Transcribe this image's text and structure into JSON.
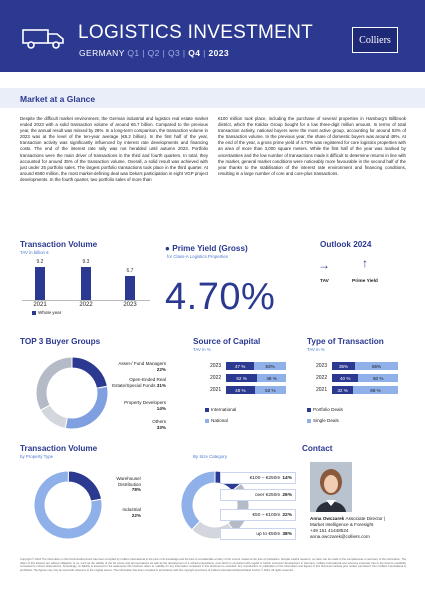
{
  "header": {
    "title": "LOGISTICS INVESTMENT",
    "country": "GERMANY",
    "quarters": [
      "Q1",
      "Q2",
      "Q3",
      "Q4"
    ],
    "current_quarter": "Q4",
    "year": "2023",
    "logo_text": "Colliers",
    "background_color": "#2b3990"
  },
  "market_at_a_glance": {
    "title": "Market at a Glance",
    "col1": "Despite the difficult market environment, the German industrial and logistics real estate market ended 2023 with a solid transaction volume of around €6.7 billion. Compared to the previous year, the annual result was missed by 28%. In a long-term comparison, the transaction volume in 2023 was at the level of the ten-year average (€6.2 billion). In the first half of the year, transaction activity was significantly influenced by interest rate developments and financing costs. The end of the interest rate rally was not heralded until autumn 2023. Portfolio transactions were the main driver of transactions in the third and fourth quarters. In total, they accounted for around 35% of the transaction volume. Overall, a solid result was achieved with just under 25 portfolio sales. The largest portfolio transactions took place in the third quarter. At around €560 million, the most market-defining deal was Deka's participation in eight VGP project developments. In the fourth quarter, two portfolio sales of more than",
    "col2": "€100 million took place, including the purchase of several properties in Hamburg's Billbrook district, which the Kaldox Group bought for a low three-digit million amount. In terms of total transaction activity, national buyers were the most active group, accounting for around 53% of the transaction volume. In the previous year, the share of domestic buyers was around 48%. At the end of the year, a gross prime yield of 4.70% was registered for core logistics properties with an area of more than 3,000 square meters. While the first half of the year was marked by uncertainties and the low number of transactions made it difficult to determine returns in line with the market, general market conditions were noticeably more favourable in the second half of the year thanks to the stabilisation of the interest rate environment and financing conditions, resulting in a large number of core and core-plus transactions."
  },
  "transaction_volume": {
    "title": "Transaction Volume",
    "subtitle": "TAV in billion €",
    "legend": "Whole year",
    "chart_data": {
      "type": "bar",
      "categories": [
        "2021",
        "2022",
        "2023"
      ],
      "values": [
        9.2,
        9.3,
        6.7
      ],
      "value_labels": [
        "9.2",
        "9.3",
        "6.7"
      ],
      "ylim": [
        0,
        10
      ]
    }
  },
  "prime_yield": {
    "title": "Prime Yield (Gross)",
    "subtitle": "for Class-A Logistics Properties",
    "value": "4.70%"
  },
  "outlook": {
    "title": "Outlook 2024",
    "items": [
      {
        "label": "TAV",
        "icon": "arrow-right-icon",
        "glyph": "→"
      },
      {
        "label": "Prime Yield",
        "icon": "arrow-up-icon",
        "glyph": "↑"
      }
    ]
  },
  "top3_buyers": {
    "title": "TOP 3 Buyer Groups",
    "chart_data": {
      "type": "pie",
      "slices": [
        {
          "label": "Asset-/ Fund Managers",
          "value": 22,
          "value_label": "22%",
          "color": "#2b3990"
        },
        {
          "label": "Open-Ended Real Estate/Special Funds",
          "value": 31,
          "value_label": "31%",
          "color": "#7f9fe0"
        },
        {
          "label": "Property Developers",
          "value": 14,
          "value_label": "14%",
          "color": "#d3d6dc"
        },
        {
          "label": "Others",
          "value": 33,
          "value_label": "33%",
          "color": "#b4bbc7"
        }
      ]
    }
  },
  "source_of_capital": {
    "title": "Source of Capital",
    "subtitle": "TAV in %",
    "legend": [
      "International",
      "National"
    ],
    "chart_data": {
      "type": "bar",
      "categories": [
        "2023",
        "2022",
        "2021"
      ],
      "series": [
        {
          "name": "International",
          "values": [
            47,
            52,
            48
          ],
          "labels": [
            "47 %",
            "52 %",
            "48 %"
          ]
        },
        {
          "name": "National",
          "values": [
            53,
            48,
            52
          ],
          "labels": [
            "53%",
            "48 %",
            "52 %"
          ]
        }
      ]
    }
  },
  "type_of_transaction": {
    "title": "Type of Transaction",
    "subtitle": "TAV in %",
    "legend": [
      "Portfolio Deals",
      "Single Deals"
    ],
    "chart_data": {
      "type": "bar",
      "categories": [
        "2023",
        "2022",
        "2021"
      ],
      "series": [
        {
          "name": "Portfolio Deals",
          "values": [
            35,
            40,
            32
          ],
          "labels": [
            "35%",
            "40 %",
            "32 %"
          ]
        },
        {
          "name": "Single Deals",
          "values": [
            65,
            60,
            68
          ],
          "labels": [
            "65%",
            "60 %",
            "68 %"
          ]
        }
      ]
    }
  },
  "tv_by_property": {
    "title": "Transaction Volume",
    "subtitle": "by Property Type",
    "chart_data": {
      "type": "pie",
      "slices": [
        {
          "label": "Warehouse/ Distribution",
          "value": 78,
          "value_label": "78%",
          "color": "#8fb0e8"
        },
        {
          "label": "Industrial",
          "value": 22,
          "value_label": "22%",
          "color": "#2b3990"
        }
      ]
    }
  },
  "tv_by_size": {
    "subtitle": "By Size Category",
    "chart_data": {
      "type": "pie",
      "slices": [
        {
          "label": "€100 – €250m",
          "value": 14,
          "value_label": "14%",
          "color": "#2b3990"
        },
        {
          "label": "over €250m",
          "value": 26,
          "value_label": "26%",
          "color": "#b4bbc7"
        },
        {
          "label": "€50 – €100m",
          "value": 22,
          "value_label": "22%",
          "color": "#d3d6dc"
        },
        {
          "label": "up to €50m",
          "value": 38,
          "value_label": "38%",
          "color": "#8fb0e8"
        }
      ]
    }
  },
  "contact": {
    "title": "Contact",
    "name": "Anna Owczarek",
    "role": "Associate Director |",
    "department": "Market Intelligence & Foresight",
    "phone": "+49 151 41448524",
    "email": "anna.owczarek@colliers.com"
  },
  "footer": {
    "text": "Copyright © 2024 The information in this brochure/document has been compiled by Colliers International to the best of its knowledge and the best of considerable scrutiny of the current market at the time of publication. Despite careful research, no claim can be made to the completeness or accuracy of the information. The offers of this Exposé are without obligation to us, such as the validity of the list prices and all reservations as well as the development of a refined prepositions, post which is consistent with regard to further economic development in Germany. Colliers International and reserves expressly has to the best its possibility connected to current observations. Accordingly, no liability is assumed in the statements this brochure refers to. Liability for any information contained in this document is excluded. Any reproduction or publication of the information and figures in this document without prior written permission from Colliers International is prohibited. The figures may only be used with reference to the original source. The information has been compiled in accordance with the copyright provisions of Colliers International Deutschland GmbH. © 2023. All rights reserved."
  }
}
